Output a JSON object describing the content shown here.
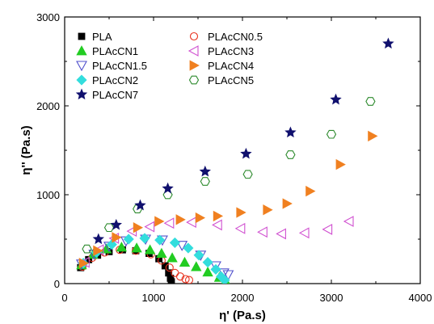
{
  "chart_data": {
    "type": "scatter",
    "xlabel": "η' (Pa.s)",
    "ylabel": "η'' (Pa.s)",
    "xlim": [
      0,
      4000
    ],
    "ylim": [
      0,
      3000
    ],
    "x_ticks": [
      "0",
      "1000",
      "2000",
      "3000",
      "4000"
    ],
    "y_ticks": [
      "0",
      "1000",
      "2000",
      "3000"
    ],
    "legend_placement": "top-left, two columns",
    "series": [
      {
        "name": "PLA",
        "marker": "square-filled",
        "color": "#000000",
        "points": [
          [
            180,
            180
          ],
          [
            270,
            270
          ],
          [
            370,
            320
          ],
          [
            500,
            360
          ],
          [
            650,
            380
          ],
          [
            800,
            370
          ],
          [
            950,
            340
          ],
          [
            1060,
            280
          ],
          [
            1130,
            200
          ],
          [
            1170,
            120
          ],
          [
            1190,
            60
          ],
          [
            1200,
            20
          ]
        ]
      },
      {
        "name": "PLAcCN0.5",
        "marker": "circle-open",
        "color": "#e8321e",
        "points": [
          [
            200,
            190
          ],
          [
            310,
            290
          ],
          [
            450,
            350
          ],
          [
            620,
            380
          ],
          [
            800,
            370
          ],
          [
            970,
            330
          ],
          [
            1090,
            260
          ],
          [
            1180,
            180
          ],
          [
            1240,
            120
          ],
          [
            1300,
            80
          ],
          [
            1360,
            50
          ],
          [
            1400,
            40
          ]
        ]
      },
      {
        "name": "PLAcCN1",
        "marker": "triangle-up-filled",
        "color": "#22cc22",
        "points": [
          [
            190,
            210
          ],
          [
            320,
            330
          ],
          [
            470,
            390
          ],
          [
            640,
            410
          ],
          [
            810,
            400
          ],
          [
            960,
            380
          ],
          [
            1090,
            340
          ],
          [
            1210,
            290
          ],
          [
            1350,
            240
          ],
          [
            1480,
            190
          ],
          [
            1610,
            130
          ],
          [
            1740,
            70
          ],
          [
            1810,
            30
          ]
        ]
      },
      {
        "name": "PLAcCN1.5",
        "marker": "triangle-down-open",
        "color": "#5050cc",
        "points": [
          [
            190,
            220
          ],
          [
            330,
            330
          ],
          [
            500,
            420
          ],
          [
            690,
            480
          ],
          [
            910,
            500
          ],
          [
            1100,
            490
          ],
          [
            1320,
            430
          ],
          [
            1530,
            320
          ],
          [
            1700,
            200
          ],
          [
            1790,
            120
          ],
          [
            1840,
            100
          ]
        ]
      },
      {
        "name": "PLAcCN2",
        "marker": "diamond-filled",
        "color": "#33dddd",
        "points": [
          [
            210,
            230
          ],
          [
            360,
            350
          ],
          [
            530,
            440
          ],
          [
            720,
            500
          ],
          [
            900,
            510
          ],
          [
            1070,
            490
          ],
          [
            1240,
            460
          ],
          [
            1390,
            400
          ],
          [
            1510,
            320
          ],
          [
            1610,
            240
          ],
          [
            1700,
            160
          ],
          [
            1760,
            80
          ],
          [
            1800,
            40
          ]
        ]
      },
      {
        "name": "PLAcCN3",
        "marker": "triangle-left-open",
        "color": "#d050d0",
        "points": [
          [
            230,
            240
          ],
          [
            390,
            380
          ],
          [
            560,
            510
          ],
          [
            760,
            590
          ],
          [
            960,
            640
          ],
          [
            1180,
            680
          ],
          [
            1430,
            690
          ],
          [
            1720,
            660
          ],
          [
            1980,
            620
          ],
          [
            2230,
            580
          ],
          [
            2440,
            560
          ],
          [
            2700,
            570
          ],
          [
            2960,
            610
          ],
          [
            3200,
            700
          ]
        ]
      },
      {
        "name": "PLAcCN4",
        "marker": "triangle-right-filled",
        "color": "#f08020",
        "points": [
          [
            210,
            230
          ],
          [
            370,
            370
          ],
          [
            580,
            520
          ],
          [
            820,
            630
          ],
          [
            1060,
            700
          ],
          [
            1300,
            720
          ],
          [
            1520,
            740
          ],
          [
            1720,
            760
          ],
          [
            1980,
            800
          ],
          [
            2280,
            830
          ],
          [
            2500,
            900
          ],
          [
            2760,
            1040
          ],
          [
            3100,
            1340
          ],
          [
            3460,
            1660
          ]
        ]
      },
      {
        "name": "PLAcCN5",
        "marker": "hexagon-open",
        "color": "#2d8a2d",
        "points": [
          [
            250,
            390
          ],
          [
            500,
            630
          ],
          [
            820,
            840
          ],
          [
            1160,
            1000
          ],
          [
            1580,
            1150
          ],
          [
            2060,
            1230
          ],
          [
            2540,
            1450
          ],
          [
            3000,
            1680
          ],
          [
            3440,
            2050
          ]
        ]
      },
      {
        "name": "PLAcCN7",
        "marker": "star-filled",
        "color": "#10106e",
        "points": [
          [
            380,
            500
          ],
          [
            580,
            660
          ],
          [
            850,
            880
          ],
          [
            1160,
            1070
          ],
          [
            1580,
            1260
          ],
          [
            2040,
            1460
          ],
          [
            2540,
            1700
          ],
          [
            3050,
            2070
          ],
          [
            3640,
            2700
          ]
        ]
      }
    ]
  }
}
